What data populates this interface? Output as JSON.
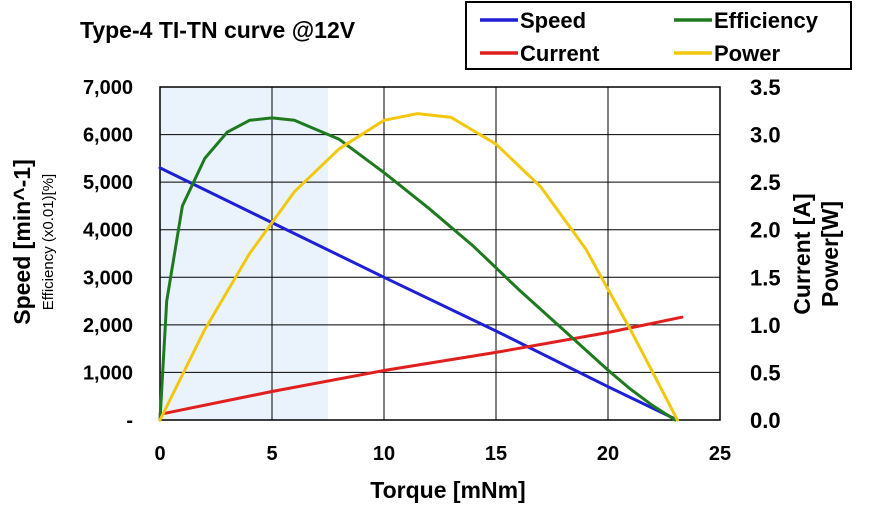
{
  "chart_data": {
    "type": "line",
    "title": "Type-4 TI-TN curve @12V",
    "xlabel": "Torque [mNm]",
    "ylabel_left": "Speed [min^-1]",
    "ylabel_left_sub": "Efficiency (x0.01)[%]",
    "ylabel_right": [
      "Current [A]",
      "Power[W]"
    ],
    "xlim": [
      0,
      25
    ],
    "ylim_left": [
      0,
      7000
    ],
    "ylim_right": [
      0,
      3.5
    ],
    "x_ticks": [
      "0",
      "5",
      "10",
      "15",
      "20",
      "25"
    ],
    "y_left_ticks": [
      "-",
      "1,000",
      "2,000",
      "3,000",
      "4,000",
      "5,000",
      "6,000",
      "7,000"
    ],
    "y_right_ticks": [
      "0.0",
      "0.5",
      "1.0",
      "1.5",
      "2.0",
      "2.5",
      "3.0",
      "3.5"
    ],
    "grid": true,
    "legend_position": "top-right",
    "shaded_region": {
      "x": [
        0,
        7.5
      ]
    },
    "series": [
      {
        "name": "Speed",
        "color": "#1f1fd6",
        "axis": "left",
        "x": [
          0,
          5,
          10,
          15,
          20,
          23
        ],
        "y": [
          5300,
          4150,
          3000,
          1870,
          700,
          20
        ]
      },
      {
        "name": "Current",
        "color": "#e01f1f",
        "axis": "right",
        "x": [
          0,
          5,
          10,
          15,
          20,
          23.3
        ],
        "y": [
          0.06,
          0.3,
          0.52,
          0.71,
          0.92,
          1.08
        ]
      },
      {
        "name": "Efficiency",
        "color": "#1f7a1f",
        "axis": "left",
        "x": [
          0,
          0.3,
          1,
          2,
          3,
          4,
          5,
          6,
          8,
          10,
          12,
          14,
          16,
          18,
          20,
          21,
          22,
          23
        ],
        "y": [
          0,
          2500,
          4500,
          5500,
          6050,
          6300,
          6350,
          6300,
          5900,
          5200,
          4450,
          3650,
          2750,
          1900,
          1050,
          650,
          300,
          0
        ]
      },
      {
        "name": "Power",
        "color": "#f2c80f",
        "axis": "right",
        "x": [
          0,
          2,
          4,
          6,
          8,
          10,
          11.5,
          13,
          15,
          17,
          19,
          21,
          22,
          23.1
        ],
        "y": [
          0,
          0.95,
          1.75,
          2.4,
          2.85,
          3.15,
          3.22,
          3.18,
          2.9,
          2.45,
          1.8,
          0.95,
          0.5,
          0
        ]
      }
    ]
  }
}
